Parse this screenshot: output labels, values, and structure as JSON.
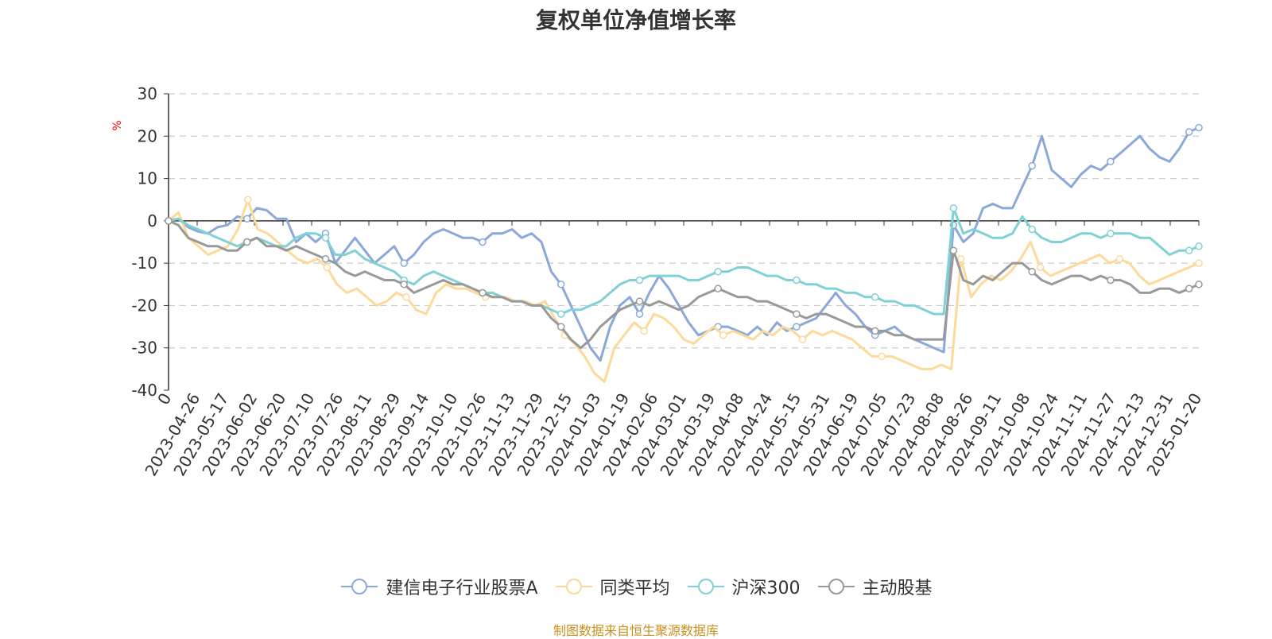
{
  "title": "复权单位净值增长率",
  "source": "制图数据来自恒生聚源数据库",
  "chart_data": {
    "type": "line",
    "title": "复权单位净值增长率",
    "ylabel": "%",
    "ylim": [
      -40,
      30
    ],
    "yticks": [
      30,
      20,
      10,
      0,
      -10,
      -20,
      -30,
      -40
    ],
    "x_tick_labels": [
      "0",
      "2023-04-26",
      "2023-05-17",
      "2023-06-02",
      "2023-06-20",
      "2023-07-10",
      "2023-07-26",
      "2023-08-11",
      "2023-08-29",
      "2023-09-14",
      "2023-10-10",
      "2023-10-26",
      "2023-11-13",
      "2023-11-29",
      "2023-12-15",
      "2024-01-03",
      "2024-01-19",
      "2024-02-06",
      "2024-03-01",
      "2024-03-19",
      "2024-04-08",
      "2024-04-24",
      "2024-05-15",
      "2024-05-31",
      "2024-06-19",
      "2024-07-05",
      "2024-07-23",
      "2024-08-08",
      "2024-08-26",
      "2024-09-11",
      "2024-10-08",
      "2024-10-24",
      "2024-11-11",
      "2024-11-27",
      "2024-12-13",
      "2024-12-31",
      "2025-01-20"
    ],
    "series": [
      {
        "name": "建信电子行业股票A",
        "color": "#8aa9d8",
        "values": [
          0,
          0.5,
          -1.5,
          -2.5,
          -3,
          -1.5,
          -1,
          1,
          0.5,
          3,
          2.5,
          0.5,
          0.5,
          -5,
          -3,
          -5,
          -3,
          -10,
          -7,
          -4,
          -7,
          -10,
          -8,
          -6,
          -10,
          -8,
          -5,
          -3,
          -2,
          -3,
          -4,
          -4,
          -5,
          -3,
          -3,
          -2,
          -4,
          -3,
          -5,
          -12,
          -15,
          -20,
          -25,
          -30,
          -33,
          -25,
          -20,
          -18,
          -22,
          -17,
          -13,
          -16,
          -20,
          -24,
          -27,
          -26,
          -25,
          -25,
          -26,
          -27,
          -25,
          -27,
          -24,
          -26,
          -25,
          -24,
          -23,
          -20,
          -17,
          -20,
          -22,
          -25,
          -27,
          -26,
          -25,
          -27,
          -28,
          -29,
          -30,
          -31,
          -1,
          -5,
          -3,
          3,
          4,
          3,
          3,
          8,
          13,
          20,
          12,
          10,
          8,
          11,
          13,
          12,
          14,
          16,
          18,
          20,
          17,
          15,
          14,
          17,
          21,
          22
        ]
      },
      {
        "name": "同类平均",
        "color": "#fdd99a",
        "values": [
          0,
          2,
          -4,
          -6,
          -8,
          -7,
          -6,
          -2,
          5,
          -2,
          -3,
          -5,
          -7,
          -9,
          -10,
          -9,
          -11,
          -15,
          -17,
          -16,
          -18,
          -20,
          -19,
          -17,
          -18,
          -21,
          -22,
          -17,
          -15,
          -16,
          -16,
          -17,
          -18,
          -18,
          -18,
          -19,
          -19,
          -20,
          -19,
          -23,
          -27,
          -29,
          -32,
          -36,
          -38,
          -30,
          -27,
          -24,
          -26,
          -22,
          -23,
          -25,
          -28,
          -29,
          -27,
          -25,
          -27,
          -26,
          -27,
          -28,
          -26,
          -27,
          -25,
          -26,
          -28,
          -26,
          -27,
          -26,
          -27,
          -28,
          -30,
          -32,
          -32,
          -32,
          -33,
          -34,
          -35,
          -35,
          -34,
          -35,
          -9,
          -18,
          -15,
          -13,
          -14,
          -12,
          -9,
          -5,
          -11,
          -13,
          -12,
          -11,
          -10,
          -9,
          -8,
          -10,
          -9,
          -10,
          -13,
          -15,
          -14,
          -13,
          -12,
          -11,
          -10
        ]
      },
      {
        "name": "沪深300",
        "color": "#7fd1d6",
        "values": [
          0,
          0.5,
          -1,
          -2,
          -3,
          -4,
          -5,
          -6,
          -5,
          -4,
          -5,
          -6,
          -6,
          -4,
          -3,
          -3,
          -4,
          -8,
          -8,
          -7,
          -9,
          -10,
          -11,
          -12,
          -14,
          -15,
          -13,
          -12,
          -13,
          -14,
          -15,
          -16,
          -17,
          -17,
          -18,
          -19,
          -19,
          -20,
          -20,
          -21,
          -22,
          -21,
          -21,
          -20,
          -19,
          -17,
          -15,
          -14,
          -14,
          -13,
          -13,
          -13,
          -13,
          -14,
          -14,
          -13,
          -12,
          -12,
          -11,
          -11,
          -12,
          -13,
          -13,
          -14,
          -14,
          -15,
          -15,
          -16,
          -16,
          -17,
          -17,
          -18,
          -18,
          -19,
          -19,
          -20,
          -20,
          -21,
          -22,
          -22,
          3,
          -3,
          -2,
          -3,
          -4,
          -4,
          -3,
          1,
          -2,
          -4,
          -5,
          -5,
          -4,
          -3,
          -3,
          -4,
          -3,
          -3,
          -3,
          -4,
          -4,
          -6,
          -8,
          -7,
          -7,
          -6
        ]
      },
      {
        "name": "主动股基",
        "color": "#999999",
        "values": [
          0,
          -1,
          -4,
          -5,
          -6,
          -6,
          -7,
          -7,
          -5,
          -4,
          -6,
          -6,
          -7,
          -6,
          -7,
          -8,
          -9,
          -10,
          -12,
          -13,
          -12,
          -13,
          -14,
          -14,
          -15,
          -17,
          -16,
          -15,
          -14,
          -15,
          -15,
          -16,
          -17,
          -18,
          -18,
          -19,
          -19,
          -20,
          -20,
          -23,
          -25,
          -28,
          -30,
          -28,
          -25,
          -23,
          -21,
          -20,
          -19,
          -20,
          -19,
          -20,
          -21,
          -20,
          -18,
          -17,
          -16,
          -17,
          -18,
          -18,
          -19,
          -19,
          -20,
          -21,
          -22,
          -23,
          -22,
          -22,
          -23,
          -24,
          -25,
          -25,
          -26,
          -26,
          -27,
          -27,
          -28,
          -28,
          -28,
          -28,
          -7,
          -14,
          -15,
          -13,
          -14,
          -12,
          -10,
          -10,
          -12,
          -14,
          -15,
          -14,
          -13,
          -13,
          -14,
          -13,
          -14,
          -14,
          -15,
          -17,
          -17,
          -16,
          -16,
          -17,
          -16,
          -15
        ]
      }
    ]
  }
}
